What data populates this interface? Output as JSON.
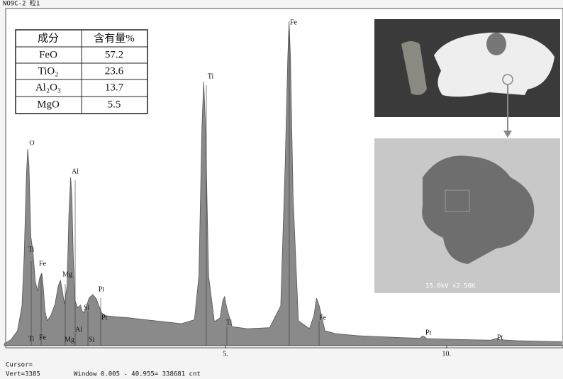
{
  "header": "NO9C-2 粒1",
  "table": {
    "columns": [
      "成分",
      "含有量%"
    ],
    "rows": [
      [
        "FeO",
        57.2
      ],
      [
        "TiO₂",
        23.6
      ],
      [
        "Al₂O₃",
        13.7
      ],
      [
        "MgO",
        5.5
      ]
    ]
  },
  "chart_data": {
    "type": "area",
    "color": "#8a8a8a",
    "x": [
      0,
      0.15,
      0.3,
      0.4,
      0.45,
      0.5,
      0.53,
      0.56,
      0.6,
      0.65,
      0.7,
      0.75,
      0.8,
      0.85,
      0.88,
      0.92,
      0.97,
      1.05,
      1.15,
      1.22,
      1.27,
      1.31,
      1.36,
      1.42,
      1.46,
      1.5,
      1.53,
      1.56,
      1.6,
      1.66,
      1.72,
      1.76,
      1.8,
      1.86,
      1.92,
      2.0,
      2.08,
      2.14,
      2.2,
      2.3,
      2.5,
      2.8,
      3.2,
      3.6,
      4.0,
      4.3,
      4.4,
      4.47,
      4.51,
      4.55,
      4.62,
      4.75,
      4.88,
      4.94,
      4.98,
      5.03,
      5.15,
      5.5,
      6.0,
      6.25,
      6.35,
      6.41,
      6.44,
      6.47,
      6.53,
      6.65,
      6.9,
      7.0,
      7.06,
      7.12,
      7.25,
      7.5,
      8.0,
      8.5,
      9.0,
      9.4,
      9.45,
      9.5,
      9.55,
      10.0,
      10.5,
      11.0,
      11.1,
      11.15,
      11.2,
      11.6,
      12.0,
      12.6
    ],
    "values": [
      20,
      60,
      150,
      400,
      900,
      1700,
      1974,
      1800,
      1100,
      941,
      650,
      550,
      680,
      727,
      600,
      350,
      250,
      300,
      420,
      600,
      656,
      560,
      420,
      600,
      1300,
      1689,
      1500,
      900,
      450,
      380,
      406,
      350,
      330,
      400,
      480,
      513,
      470,
      400,
      330,
      300,
      290,
      280,
      260,
      240,
      220,
      260,
      700,
      2200,
      2651,
      2200,
      700,
      240,
      280,
      450,
      492,
      380,
      190,
      170,
      180,
      400,
      1800,
      2900,
      3257,
      2900,
      1500,
      250,
      170,
      300,
      477,
      400,
      150,
      120,
      100,
      90,
      80,
      75,
      95,
      90,
      70,
      65,
      60,
      55,
      70,
      75,
      60,
      50,
      45,
      40
    ],
    "xlim": [
      0,
      12.6
    ],
    "ylim": [
      0,
      3385
    ],
    "xticks": [
      {
        "value": 5,
        "label": "5."
      },
      {
        "value": 10,
        "label": "10."
      }
    ],
    "peak_labels": [
      "O",
      "Ti",
      "Fe",
      "Mg",
      "Al",
      "Si",
      "Pt",
      "Pt",
      "Ti",
      "Fe",
      "Mg",
      "Al",
      "Si",
      "Ti",
      "Ti",
      "Fe",
      "Fe",
      "Pt",
      "Pt"
    ]
  },
  "footer": [
    "Cursor=",
    "Vert=3385",
    "Window 0.005 - 40.955=   338681 cnt"
  ],
  "image_caption": "15.0kV ×2.50K"
}
